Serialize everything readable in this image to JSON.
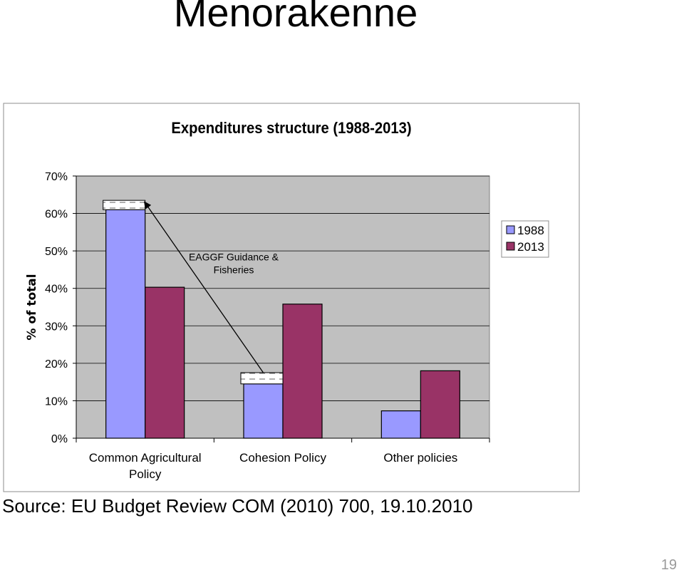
{
  "slide": {
    "title": "Menorakenne",
    "source": "Source: EU Budget Review COM (2010) 700, 19.10.2010",
    "page_number": "19"
  },
  "chart_data": {
    "type": "bar",
    "title": "Expenditures structure (1988-2013)",
    "xlabel": "",
    "ylabel": "% of total",
    "categories": [
      [
        "Common Agricultural",
        "Policy"
      ],
      [
        "Cohesion Policy"
      ],
      [
        "Other policies"
      ]
    ],
    "series": [
      {
        "name": "1988",
        "values": [
          61,
          14.5,
          7.3
        ],
        "color": "#9999ff"
      },
      {
        "name": "2013",
        "values": [
          40.3,
          35.8,
          18
        ],
        "color": "#993366"
      }
    ],
    "stacked_segments": [
      {
        "category_index": 0,
        "series_index": 0,
        "from": 61,
        "to": 63.5,
        "pattern": "dashed-white"
      },
      {
        "category_index": 1,
        "series_index": 0,
        "from": 14.5,
        "to": 17.5,
        "pattern": "dashed-white"
      }
    ],
    "annotation": {
      "text_lines": [
        "EAGGF Guidance &",
        "Fisheries"
      ],
      "arrow": {
        "from_category": 1,
        "from_value": 17.5,
        "to_category": 0,
        "to_value": 63.5
      }
    },
    "ylim": [
      0,
      70
    ],
    "yticks": [
      0,
      10,
      20,
      30,
      40,
      50,
      60,
      70
    ],
    "tick_format": "percent",
    "grid": true,
    "plot_background": "#c0c0c0",
    "legend": "right"
  }
}
